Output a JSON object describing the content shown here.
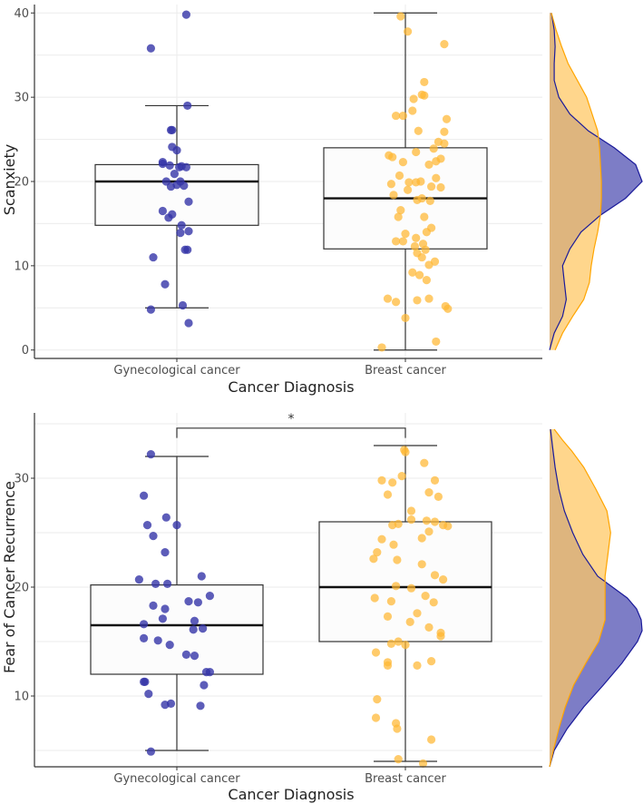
{
  "colors": {
    "gynecological": "#3535a8",
    "breast": "#ffb732",
    "density_gyn_fill": "#6f6fc0",
    "density_gyn_line": "#1a1a9a",
    "density_breast_fill": "#ffc866",
    "density_breast_line": "#ffa500",
    "overlap": "#b48c5a"
  },
  "chart_data": [
    {
      "type": "box",
      "id": "scanxiety",
      "ylabel": "Scanxiety",
      "xlabel": "Cancer Diagnosis",
      "categories": [
        "Gynecological cancer",
        "Breast cancer"
      ],
      "ylim": [
        -1,
        41
      ],
      "yticks": [
        0,
        10,
        20,
        30,
        40
      ],
      "significance": null,
      "boxes": [
        {
          "group": "Gynecological cancer",
          "min": 5,
          "q1": 14.8,
          "median": 20,
          "q3": 22,
          "max": 29
        },
        {
          "group": "Breast cancer",
          "min": 0,
          "q1": 12,
          "median": 18,
          "q3": 24,
          "max": 40
        }
      ],
      "points": {
        "Gynecological cancer": [
          [
            0.08,
            39.8
          ],
          [
            -0.22,
            35.8
          ],
          [
            0.09,
            29
          ],
          [
            -0.05,
            26.1
          ],
          [
            -0.04,
            26.1
          ],
          [
            -0.04,
            24.1
          ],
          [
            0.0,
            23.7
          ],
          [
            -0.12,
            22.1
          ],
          [
            -0.12,
            22.3
          ],
          [
            -0.06,
            21.9
          ],
          [
            0.02,
            21.7
          ],
          [
            0.04,
            21.8
          ],
          [
            0.08,
            21.7
          ],
          [
            -0.02,
            20.9
          ],
          [
            -0.09,
            20.0
          ],
          [
            0.03,
            20.0
          ],
          [
            0.0,
            19.6
          ],
          [
            -0.05,
            19.4
          ],
          [
            0.1,
            17.6
          ],
          [
            -0.04,
            16.1
          ],
          [
            -0.07,
            15.7
          ],
          [
            0.04,
            14.8
          ],
          [
            0.03,
            13.9
          ],
          [
            0.07,
            11.9
          ],
          [
            0.09,
            11.9
          ],
          [
            -0.2,
            11.0
          ],
          [
            -0.1,
            7.8
          ],
          [
            0.05,
            5.3
          ],
          [
            -0.22,
            4.8
          ],
          [
            0.1,
            3.2
          ],
          [
            0.06,
            19.5
          ],
          [
            -0.12,
            16.5
          ],
          [
            0.1,
            14.1
          ]
        ],
        "Breast cancer": [
          [
            -0.04,
            39.6
          ],
          [
            0.02,
            37.8
          ],
          [
            0.33,
            36.3
          ],
          [
            0.16,
            31.8
          ],
          [
            0.14,
            30.3
          ],
          [
            0.16,
            30.2
          ],
          [
            0.07,
            29.8
          ],
          [
            0.35,
            27.4
          ],
          [
            -0.08,
            27.8
          ],
          [
            -0.02,
            27.8
          ],
          [
            0.11,
            26.0
          ],
          [
            0.33,
            25.9
          ],
          [
            0.28,
            24.7
          ],
          [
            0.33,
            24.5
          ],
          [
            0.24,
            23.9
          ],
          [
            0.09,
            23.5
          ],
          [
            0.3,
            22.7
          ],
          [
            0.26,
            22.4
          ],
          [
            -0.14,
            23.1
          ],
          [
            -0.11,
            22.9
          ],
          [
            -0.02,
            22.3
          ],
          [
            0.2,
            22.0
          ],
          [
            -0.05,
            20.7
          ],
          [
            0.13,
            20.0
          ],
          [
            0.26,
            20.4
          ],
          [
            0.09,
            19.9
          ],
          [
            0.03,
            19.9
          ],
          [
            -0.12,
            19.7
          ],
          [
            0.02,
            19.0
          ],
          [
            0.22,
            19.4
          ],
          [
            -0.1,
            18.4
          ],
          [
            0.14,
            18.0
          ],
          [
            0.1,
            17.8
          ],
          [
            0.21,
            17.7
          ],
          [
            -0.04,
            16.6
          ],
          [
            0.16,
            15.8
          ],
          [
            0.22,
            14.5
          ],
          [
            0.18,
            14.0
          ],
          [
            0.0,
            13.8
          ],
          [
            0.09,
            13.3
          ],
          [
            -0.08,
            12.9
          ],
          [
            -0.02,
            12.9
          ],
          [
            0.08,
            12.3
          ],
          [
            0.17,
            11.9
          ],
          [
            0.1,
            11.5
          ],
          [
            0.14,
            11.0
          ],
          [
            0.2,
            10.1
          ],
          [
            0.25,
            10.5
          ],
          [
            0.06,
            9.2
          ],
          [
            0.12,
            8.9
          ],
          [
            0.18,
            8.3
          ],
          [
            -0.15,
            6.1
          ],
          [
            -0.08,
            5.7
          ],
          [
            0.1,
            5.9
          ],
          [
            0.2,
            6.1
          ],
          [
            0.34,
            5.2
          ],
          [
            0.36,
            4.9
          ],
          [
            0.0,
            3.8
          ],
          [
            -0.2,
            0.3
          ],
          [
            0.26,
            1.0
          ],
          [
            0.06,
            28.4
          ],
          [
            0.15,
            12.6
          ],
          [
            -0.06,
            15.8
          ],
          [
            0.3,
            19.3
          ]
        ]
      },
      "density_gyn": [
        [
          0,
          0.0
        ],
        [
          2,
          0.05
        ],
        [
          4,
          0.14
        ],
        [
          6,
          0.18
        ],
        [
          8,
          0.16
        ],
        [
          10,
          0.14
        ],
        [
          12,
          0.22
        ],
        [
          14,
          0.34
        ],
        [
          16,
          0.55
        ],
        [
          18,
          0.82
        ],
        [
          20,
          1.0
        ],
        [
          22,
          0.93
        ],
        [
          24,
          0.7
        ],
        [
          26,
          0.42
        ],
        [
          28,
          0.22
        ],
        [
          30,
          0.1
        ],
        [
          32,
          0.05
        ],
        [
          34,
          0.05
        ],
        [
          36,
          0.06
        ],
        [
          38,
          0.05
        ],
        [
          40,
          0.02
        ]
      ],
      "density_breast": [
        [
          0,
          0.06
        ],
        [
          2,
          0.14
        ],
        [
          4,
          0.25
        ],
        [
          6,
          0.37
        ],
        [
          8,
          0.43
        ],
        [
          10,
          0.45
        ],
        [
          12,
          0.48
        ],
        [
          14,
          0.52
        ],
        [
          16,
          0.55
        ],
        [
          18,
          0.56
        ],
        [
          20,
          0.56
        ],
        [
          22,
          0.55
        ],
        [
          24,
          0.54
        ],
        [
          26,
          0.52
        ],
        [
          28,
          0.46
        ],
        [
          30,
          0.4
        ],
        [
          32,
          0.3
        ],
        [
          34,
          0.2
        ],
        [
          36,
          0.13
        ],
        [
          38,
          0.07
        ],
        [
          40,
          0.02
        ]
      ]
    },
    {
      "type": "box",
      "id": "fear",
      "ylabel": "Fear of Cancer Recurrence",
      "xlabel": "Cancer Diagnosis",
      "categories": [
        "Gynecological cancer",
        "Breast cancer"
      ],
      "ylim": [
        3.5,
        36
      ],
      "yticks": [
        10,
        20,
        30
      ],
      "significance": "*",
      "sig_level": 34.6,
      "boxes": [
        {
          "group": "Gynecological cancer",
          "min": 5,
          "q1": 12,
          "median": 16.5,
          "q3": 20.2,
          "max": 32
        },
        {
          "group": "Breast cancer",
          "min": 4,
          "q1": 15,
          "median": 20,
          "q3": 26,
          "max": 33
        }
      ],
      "points": {
        "Gynecological cancer": [
          [
            -0.22,
            32.2
          ],
          [
            -0.28,
            28.4
          ],
          [
            -0.09,
            26.4
          ],
          [
            -0.25,
            25.7
          ],
          [
            0.0,
            25.7
          ],
          [
            -0.2,
            24.7
          ],
          [
            -0.1,
            23.2
          ],
          [
            0.21,
            21.0
          ],
          [
            -0.32,
            20.7
          ],
          [
            -0.08,
            20.3
          ],
          [
            -0.18,
            20.3
          ],
          [
            0.28,
            19.2
          ],
          [
            0.1,
            18.7
          ],
          [
            0.18,
            18.6
          ],
          [
            -0.1,
            18.0
          ],
          [
            -0.2,
            18.3
          ],
          [
            -0.12,
            17.1
          ],
          [
            0.15,
            16.9
          ],
          [
            -0.28,
            16.6
          ],
          [
            0.14,
            16.1
          ],
          [
            0.22,
            16.2
          ],
          [
            -0.28,
            15.3
          ],
          [
            -0.16,
            15.1
          ],
          [
            -0.06,
            14.7
          ],
          [
            0.08,
            13.8
          ],
          [
            0.15,
            13.7
          ],
          [
            0.25,
            12.2
          ],
          [
            0.28,
            12.2
          ],
          [
            0.23,
            11.0
          ],
          [
            -0.27,
            11.3
          ],
          [
            -0.28,
            11.3
          ],
          [
            -0.24,
            10.2
          ],
          [
            -0.05,
            9.3
          ],
          [
            -0.1,
            9.2
          ],
          [
            0.2,
            9.1
          ],
          [
            -0.22,
            4.9
          ]
        ],
        "Breast cancer": [
          [
            -0.01,
            32.6
          ],
          [
            0.0,
            32.4
          ],
          [
            -0.2,
            29.8
          ],
          [
            -0.11,
            29.6
          ],
          [
            -0.03,
            30.2
          ],
          [
            0.2,
            28.7
          ],
          [
            0.28,
            28.3
          ],
          [
            -0.15,
            28.5
          ],
          [
            0.05,
            27.0
          ],
          [
            0.25,
            26.0
          ],
          [
            0.18,
            26.1
          ],
          [
            0.32,
            25.7
          ],
          [
            0.36,
            25.6
          ],
          [
            -0.11,
            25.7
          ],
          [
            -0.06,
            25.8
          ],
          [
            0.2,
            25.1
          ],
          [
            0.14,
            24.5
          ],
          [
            -0.1,
            23.9
          ],
          [
            -0.24,
            23.2
          ],
          [
            -0.27,
            22.6
          ],
          [
            -0.07,
            22.5
          ],
          [
            0.14,
            22.1
          ],
          [
            0.25,
            21.1
          ],
          [
            0.32,
            20.7
          ],
          [
            -0.08,
            20.1
          ],
          [
            0.05,
            19.9
          ],
          [
            0.17,
            19.2
          ],
          [
            -0.12,
            18.7
          ],
          [
            0.24,
            18.6
          ],
          [
            0.1,
            17.6
          ],
          [
            -0.15,
            17.3
          ],
          [
            0.04,
            16.8
          ],
          [
            0.2,
            16.3
          ],
          [
            0.3,
            15.8
          ],
          [
            0.3,
            15.5
          ],
          [
            -0.06,
            15.0
          ],
          [
            -0.12,
            14.8
          ],
          [
            0.0,
            14.7
          ],
          [
            -0.25,
            14.0
          ],
          [
            -0.15,
            13.1
          ],
          [
            0.22,
            13.2
          ],
          [
            -0.15,
            12.8
          ],
          [
            0.1,
            12.8
          ],
          [
            -0.24,
            9.7
          ],
          [
            -0.25,
            8.0
          ],
          [
            -0.08,
            7.5
          ],
          [
            -0.07,
            7.0
          ],
          [
            0.22,
            6.0
          ],
          [
            -0.06,
            4.2
          ],
          [
            0.15,
            3.8
          ],
          [
            0.16,
            31.4
          ],
          [
            -0.2,
            24.4
          ],
          [
            0.05,
            26.2
          ],
          [
            0.25,
            29.8
          ],
          [
            -0.26,
            19.0
          ]
        ]
      },
      "density_gyn": [
        [
          3.5,
          0.0
        ],
        [
          5,
          0.05
        ],
        [
          7,
          0.19
        ],
        [
          9,
          0.37
        ],
        [
          11,
          0.58
        ],
        [
          13,
          0.78
        ],
        [
          15,
          0.95
        ],
        [
          16,
          1.0
        ],
        [
          17,
          0.99
        ],
        [
          18,
          0.94
        ],
        [
          19,
          0.84
        ],
        [
          20,
          0.68
        ],
        [
          21,
          0.52
        ],
        [
          23,
          0.36
        ],
        [
          25,
          0.25
        ],
        [
          27,
          0.16
        ],
        [
          29,
          0.1
        ],
        [
          31,
          0.06
        ],
        [
          33,
          0.03
        ],
        [
          34.5,
          0.01
        ]
      ],
      "density_breast": [
        [
          3.5,
          0.0
        ],
        [
          5,
          0.04
        ],
        [
          7,
          0.1
        ],
        [
          9,
          0.17
        ],
        [
          11,
          0.26
        ],
        [
          13,
          0.39
        ],
        [
          15,
          0.53
        ],
        [
          17,
          0.6
        ],
        [
          19,
          0.6
        ],
        [
          21,
          0.6
        ],
        [
          23,
          0.63
        ],
        [
          25,
          0.66
        ],
        [
          27,
          0.62
        ],
        [
          29,
          0.5
        ],
        [
          31,
          0.37
        ],
        [
          32.5,
          0.24
        ],
        [
          33.5,
          0.14
        ],
        [
          34.5,
          0.05
        ]
      ]
    }
  ]
}
